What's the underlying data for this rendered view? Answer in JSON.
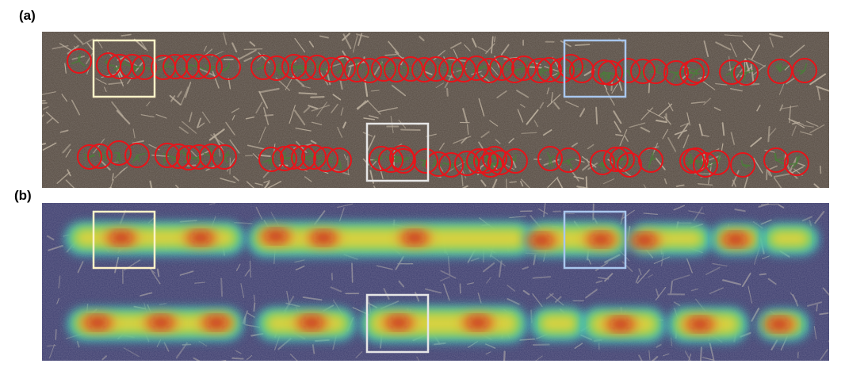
{
  "figure": {
    "panel_a_label": "(a)",
    "panel_b_label": "(b)"
  },
  "panels": {
    "a": {
      "type": "aerial soil photograph with plant detections",
      "detection_color": "#e8141a",
      "background_color": "#5a4f46"
    },
    "b": {
      "type": "heatmap overlay on photograph",
      "colormap": [
        "#1f2a86",
        "#2a66c9",
        "#3fc0c8",
        "#7fd35a",
        "#e8d23a",
        "#e8702a",
        "#b8181a"
      ]
    }
  },
  "highlight_boxes": [
    {
      "name": "box-yellow",
      "color": "#fff3c8"
    },
    {
      "name": "box-blue",
      "color": "#a9c7ee"
    },
    {
      "name": "box-gray",
      "color": "#e6e6e6"
    }
  ]
}
